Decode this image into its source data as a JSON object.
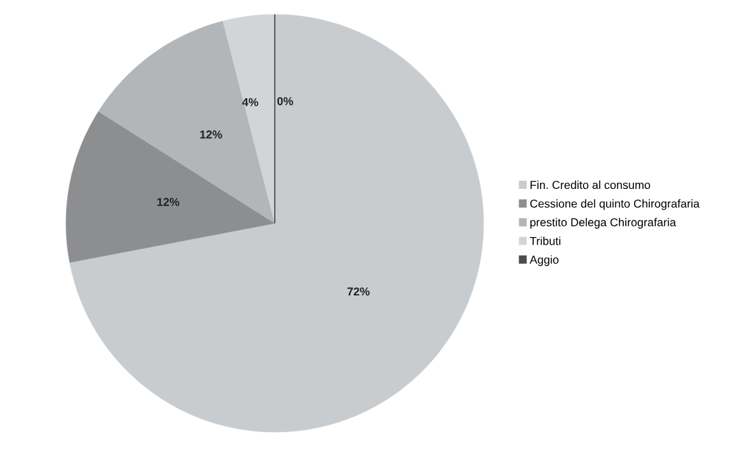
{
  "chart_data": {
    "type": "pie",
    "categories": [
      "Fin. Credito al consumo",
      "Cessione del quinto Chirografaria",
      "prestito Delega Chirografaria",
      "Tributi",
      "Aggio"
    ],
    "values": [
      72,
      12,
      12,
      4,
      0
    ],
    "colors": [
      "#c9cccf",
      "#8c8e90",
      "#b3b6b8",
      "#d2d4d6",
      "#4a4c4e"
    ],
    "value_labels": [
      "72%",
      "12%",
      "12%",
      "4%",
      "0%"
    ],
    "legend": "right"
  }
}
